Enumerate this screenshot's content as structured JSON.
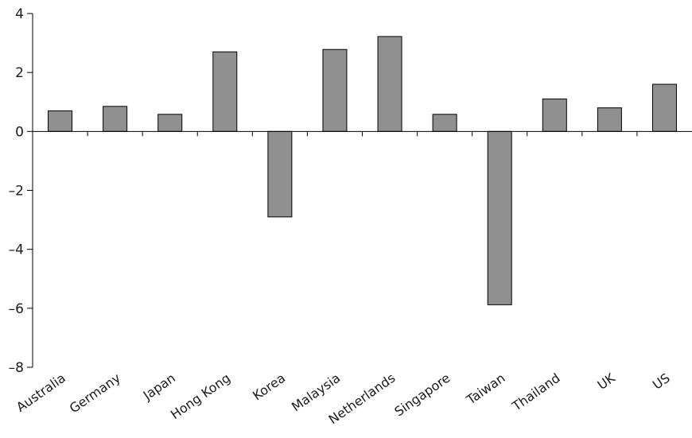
{
  "chart_data": {
    "type": "bar",
    "title": "",
    "xlabel": "",
    "ylabel": "",
    "categories": [
      "Australia",
      "Germany",
      "Japan",
      "Hong Kong",
      "Korea",
      "Malaysia",
      "Netherlands",
      "Singapore",
      "Taiwan",
      "Thailand",
      "UK",
      "US"
    ],
    "values": [
      0.7,
      0.85,
      0.58,
      2.7,
      -2.9,
      2.78,
      3.22,
      0.58,
      -5.88,
      1.1,
      0.8,
      1.6
    ],
    "ylim": [
      -8,
      4
    ],
    "yticks": [
      4,
      2,
      0,
      -2,
      -4,
      -6,
      -8
    ],
    "ytick_labels": [
      "4",
      "2",
      "0",
      "–2",
      "–4",
      "–6",
      "–8"
    ],
    "grid": false,
    "legend": "none",
    "colors": {
      "bar_fill": "#909090",
      "bar_stroke": "#000000",
      "axis": "#000000"
    }
  }
}
